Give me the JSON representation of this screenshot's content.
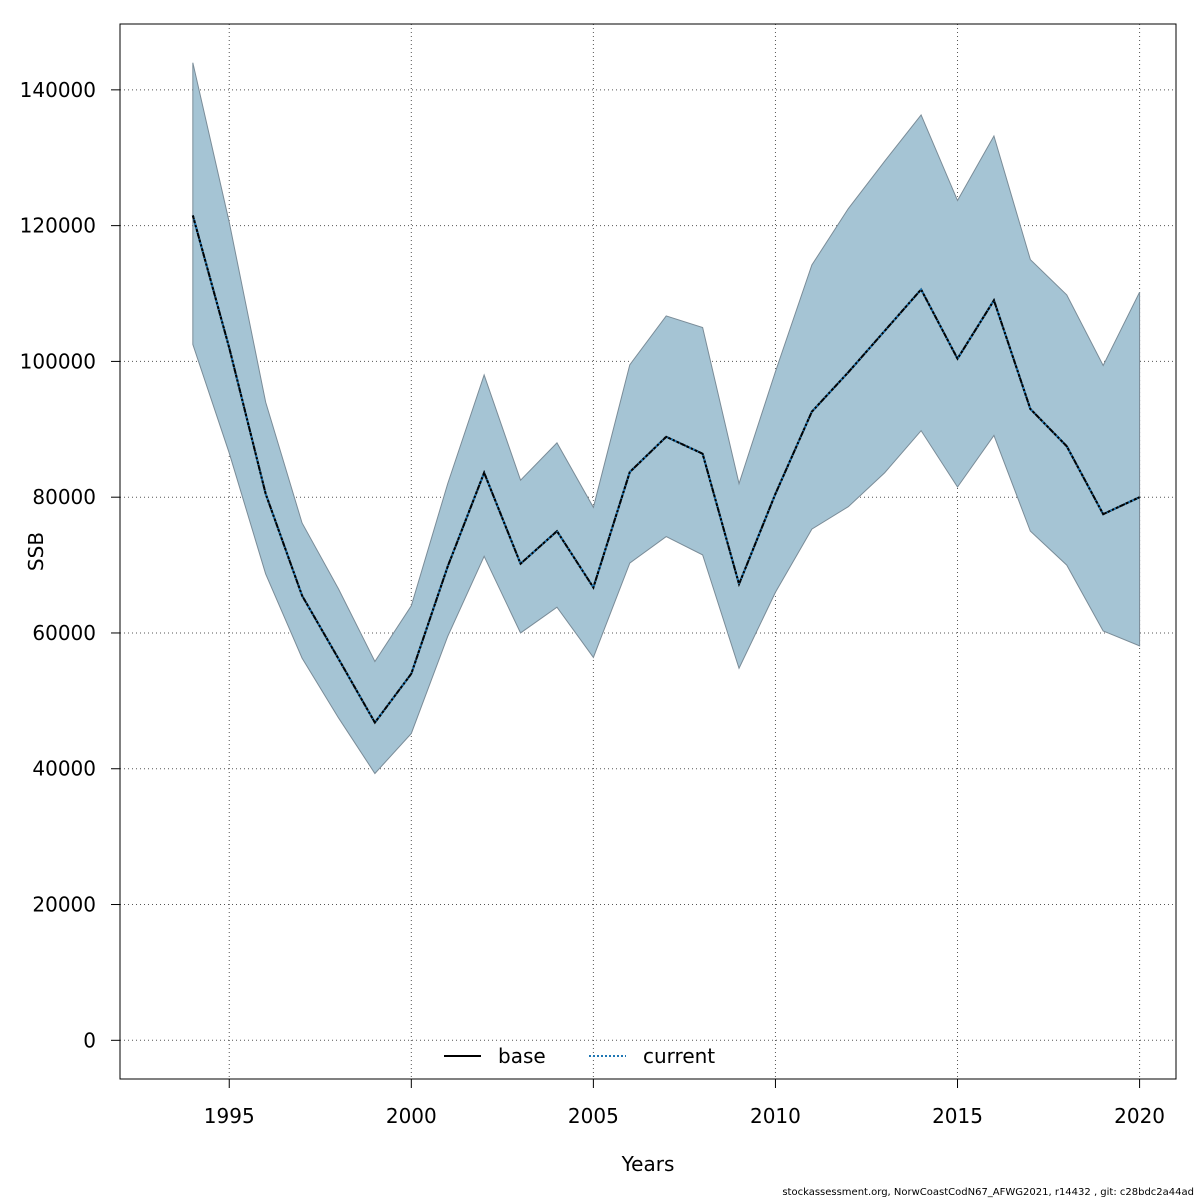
{
  "chart_data": {
    "type": "area",
    "title": "",
    "xlabel": "Years",
    "ylabel": "SSB",
    "xlim": [
      1992,
      2021
    ],
    "ylim": [
      -5700,
      149700
    ],
    "x_ticks": [
      1995,
      2000,
      2005,
      2010,
      2015,
      2020
    ],
    "y_ticks": [
      0,
      20000,
      40000,
      60000,
      80000,
      100000,
      120000,
      140000
    ],
    "x_tick_labels": [
      "1995",
      "2000",
      "2005",
      "2010",
      "2015",
      "2020"
    ],
    "y_tick_labels": [
      "0",
      "20000",
      "40000",
      "60000",
      "80000",
      "100000",
      "120000",
      "140000"
    ],
    "grid": true,
    "grid_style": "dotted",
    "legend_placement": "bottom",
    "band_color": "#a5c4d4",
    "band_edge_color": "#7a8c98",
    "x": [
      1994,
      1995,
      1996,
      1997,
      1998,
      1999,
      2000,
      2001,
      2002,
      2003,
      2004,
      2005,
      2006,
      2007,
      2008,
      2009,
      2010,
      2011,
      2012,
      2013,
      2014,
      2015,
      2016,
      2017,
      2018,
      2019,
      2020
    ],
    "band": {
      "upper": [
        144000,
        120500,
        94000,
        76200,
        66500,
        55800,
        64000,
        82000,
        98000,
        82500,
        88000,
        78500,
        99500,
        106700,
        105000,
        82000,
        98500,
        114200,
        122500,
        129500,
        136300,
        123700,
        133200,
        115000,
        109800,
        99400,
        110200
      ],
      "lower": [
        102500,
        86500,
        68700,
        56300,
        47500,
        39300,
        45200,
        59500,
        71300,
        60000,
        63800,
        56400,
        70300,
        74200,
        71500,
        54800,
        66000,
        75300,
        78600,
        83600,
        89800,
        81500,
        89100,
        75000,
        70000,
        60300,
        58100
      ]
    },
    "series": [
      {
        "name": "base",
        "style": "solid",
        "color": "#000000",
        "values": [
          121500,
          102000,
          80500,
          65500,
          56200,
          46800,
          54000,
          69800,
          83600,
          70200,
          75000,
          66700,
          83700,
          88900,
          86400,
          67200,
          80500,
          92600,
          98400,
          104500,
          110600,
          100400,
          109000,
          93000,
          87500,
          77500,
          80000
        ]
      },
      {
        "name": "current",
        "style": "dotted",
        "color": "#1f77b4",
        "values": [
          121500,
          102000,
          80500,
          65500,
          56200,
          46800,
          54000,
          69800,
          83600,
          70200,
          75000,
          66700,
          83700,
          88900,
          86400,
          67200,
          80500,
          92600,
          98400,
          104500,
          110600,
          100400,
          109000,
          93000,
          87500,
          77500,
          80000
        ]
      }
    ]
  },
  "footer": "stockassessment.org, NorwCoastCodN67_AFWG2021, r14432 , git: c28bdc2a44ad"
}
